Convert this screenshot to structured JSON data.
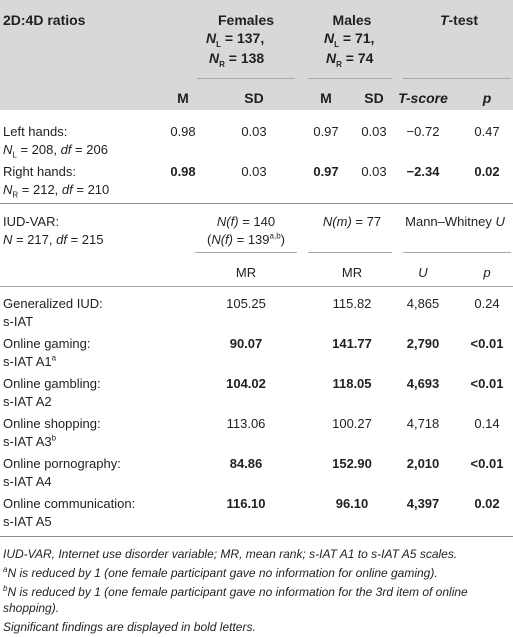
{
  "header": {
    "title": "2D:4D ratios",
    "females_label": "Females",
    "females_nl": "N",
    "females_nl_sub": "L",
    "females_nl_val": " = 137,",
    "females_nr": "N",
    "females_nr_sub": "R",
    "females_nr_val": " = 138",
    "males_label": "Males",
    "males_nl": "N",
    "males_nl_sub": "L",
    "males_nl_val": " = 71,",
    "males_nr": "N",
    "males_nr_sub": "R",
    "males_nr_val": " = 74",
    "ttest_t": "T",
    "ttest_rest": "-test"
  },
  "subheader": {
    "m1": "M",
    "sd1": "SD",
    "m2": "M",
    "sd2": "SD",
    "tscore": "T-score",
    "p": "p"
  },
  "rows_2d4d": [
    {
      "label1": "Left hands:",
      "label2_n": "N",
      "label2_sub": "L",
      "label2_rest": " = 208, ",
      "label2_df": "df",
      "label2_dfval": " = 206",
      "f_m": "0.98",
      "f_sd": "0.03",
      "m_m": "0.97",
      "m_sd": "0.03",
      "t": "−0.72",
      "p": "0.47"
    },
    {
      "label1": "Right hands:",
      "label2_n": "N",
      "label2_sub": "R",
      "label2_rest": " = 212, ",
      "label2_df": "df",
      "label2_dfval": " = 210",
      "f_m": "0.98",
      "f_sd": "0.03",
      "m_m": "0.97",
      "m_sd": "0.03",
      "t": "−2.34",
      "p": "0.02"
    }
  ],
  "iud": {
    "label1": "IUD-VAR:",
    "label2_n": "N",
    "label2_rest": " = 217, ",
    "label2_df": "df",
    "label2_dfval": " = 215",
    "nf": "N(f)",
    "nf_val": " = 140",
    "nf2_open": "(",
    "nf2": "N(f)",
    "nf2_val": " = 139",
    "nf2_sup": "a,b",
    "nf2_close": ")",
    "nm": "N(m)",
    "nm_val": " = 77",
    "mw": "Mann–Whitney ",
    "mw_u": "U",
    "mr1": "MR",
    "mr2": "MR",
    "u": "U",
    "p": "p"
  },
  "rows_iud": [
    {
      "l1": "Generalized IUD:",
      "l2": "s-IAT",
      "sup": "",
      "f": "105.25",
      "m": "115.82",
      "u": "4,865",
      "p": "0.24",
      "bold": false
    },
    {
      "l1": "Online gaming:",
      "l2": "s-IAT A1",
      "sup": "a",
      "f": "90.07",
      "m": "141.77",
      "u": "2,790",
      "p": "<0.01",
      "bold": true
    },
    {
      "l1": "Online gambling:",
      "l2": "s-IAT A2",
      "sup": "",
      "f": "104.02",
      "m": "118.05",
      "u": "4,693",
      "p": "<0.01",
      "bold": true
    },
    {
      "l1": "Online shopping:",
      "l2": "s-IAT A3",
      "sup": "b",
      "f": "113.06",
      "m": "100.27",
      "u": "4,718",
      "p": "0.14",
      "bold": false
    },
    {
      "l1": "Online pornography:",
      "l2": "s-IAT A4",
      "sup": "",
      "f": "84.86",
      "m": "152.90",
      "u": "2,010",
      "p": "<0.01",
      "bold": true
    },
    {
      "l1": "Online communication:",
      "l2": "s-IAT A5",
      "sup": "",
      "f": "116.10",
      "m": "96.10",
      "u": "4,397",
      "p": "0.02",
      "bold": true
    }
  ],
  "notes": {
    "n1": "IUD-VAR, Internet use disorder variable; MR, mean rank; s-IAT A1 to s-IAT A5 scales.",
    "n2_sup": "a",
    "n2": "N is reduced by 1 (one female participant gave no information for online gaming).",
    "n3_sup": "b",
    "n3a": "N is reduced by 1 (one female participant gave no information for the 3rd item of online",
    "n3b": "shopping).",
    "n4": "Significant findings are displayed in bold letters."
  }
}
